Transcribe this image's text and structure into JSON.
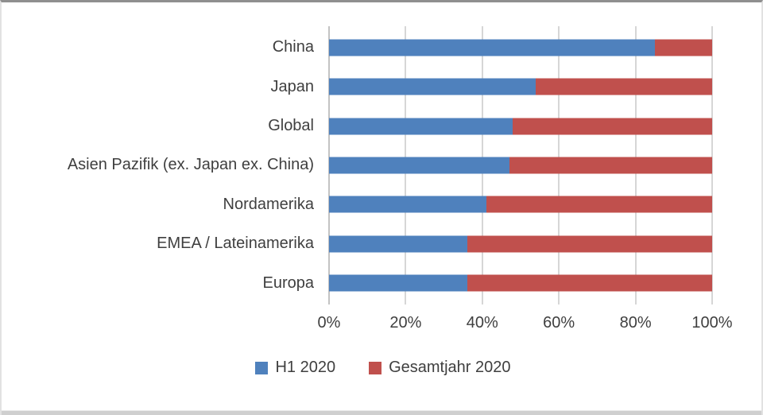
{
  "chart_data": {
    "type": "bar",
    "orientation": "horizontal",
    "stacked": true,
    "unit": "%",
    "title": "",
    "xlabel": "",
    "ylabel": "",
    "categories": [
      "China",
      "Japan",
      "Global",
      "Asien Pazifik (ex. Japan ex. China)",
      "Nordamerika",
      "EMEA / Lateinamerika",
      "Europa"
    ],
    "series": [
      {
        "name": "H1 2020",
        "color": "#4F81BD",
        "values": [
          85,
          54,
          48,
          47,
          41,
          36,
          36
        ]
      },
      {
        "name": "Gesamtjahr 2020",
        "color": "#C0504D",
        "values": [
          15,
          46,
          52,
          53,
          59,
          64,
          64
        ]
      }
    ],
    "xlim": [
      0,
      100
    ],
    "x_ticks": [
      "0%",
      "20%",
      "40%",
      "60%",
      "80%",
      "100%"
    ],
    "grid": true,
    "legend_position": "bottom"
  },
  "colors": {
    "gridline": "#d6d6d6",
    "axis_line": "#c3c3c3",
    "text": "#3f3f3f"
  }
}
